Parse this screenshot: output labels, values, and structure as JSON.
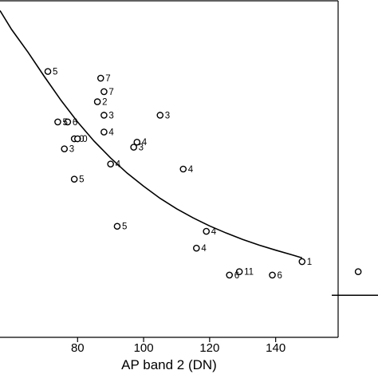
{
  "chart_data": {
    "type": "scatter",
    "title": "",
    "xlabel": "AP band 2  (DN)",
    "ylabel": "",
    "xlim": [
      56.5,
      171
    ],
    "ylim": [
      0,
      100
    ],
    "x_ticks": [
      80,
      100,
      120,
      140
    ],
    "grid": false,
    "legend_visible_text": "",
    "series": [
      {
        "points": [
          {
            "x": 71,
            "y": 79,
            "label": "5"
          },
          {
            "x": 87,
            "y": 77,
            "label": "7"
          },
          {
            "x": 88,
            "y": 73,
            "label": "7"
          },
          {
            "x": 86,
            "y": 70,
            "label": "2"
          },
          {
            "x": 88,
            "y": 66,
            "label": "3"
          },
          {
            "x": 105,
            "y": 66,
            "label": "3"
          },
          {
            "x": 74,
            "y": 64,
            "label": "5"
          },
          {
            "x": 77,
            "y": 64,
            "label": "6"
          },
          {
            "x": 88,
            "y": 61,
            "label": "4"
          },
          {
            "x": 79,
            "y": 59,
            "label": "0"
          },
          {
            "x": 80,
            "y": 59,
            "label": "0"
          },
          {
            "x": 98,
            "y": 58,
            "label": "4"
          },
          {
            "x": 97,
            "y": 56.5,
            "label": "3"
          },
          {
            "x": 76,
            "y": 56,
            "label": "3"
          },
          {
            "x": 90,
            "y": 51.5,
            "label": "4"
          },
          {
            "x": 112,
            "y": 50,
            "label": "4"
          },
          {
            "x": 79,
            "y": 47,
            "label": "5"
          },
          {
            "x": 92,
            "y": 33,
            "label": "5"
          },
          {
            "x": 119,
            "y": 31.5,
            "label": "4"
          },
          {
            "x": 116,
            "y": 26.5,
            "label": "4"
          },
          {
            "x": 148,
            "y": 22.5,
            "label": "1"
          },
          {
            "x": 129,
            "y": 19.5,
            "label": "11"
          },
          {
            "x": 126,
            "y": 18.5,
            "label": "6"
          },
          {
            "x": 139,
            "y": 18.5,
            "label": "6"
          },
          {
            "x": 165,
            "y": 19.5,
            "label": ""
          }
        ]
      }
    ],
    "fit_curve": {
      "type": "power",
      "x": [
        56.5,
        60,
        65,
        70,
        75,
        80,
        85,
        90,
        95,
        100,
        105,
        110,
        115,
        120,
        125,
        130,
        135,
        140,
        145,
        148
      ],
      "y": [
        97.1,
        91.5,
        84.7,
        77.4,
        70.4,
        64.0,
        58.3,
        53.3,
        48.8,
        44.9,
        41.3,
        38.2,
        35.5,
        33.1,
        31.0,
        29.1,
        27.4,
        25.9,
        24.5,
        23.6
      ]
    },
    "legend_line_sample": {
      "x": [
        157,
        171
      ],
      "y": [
        12.5,
        12.5
      ]
    }
  }
}
